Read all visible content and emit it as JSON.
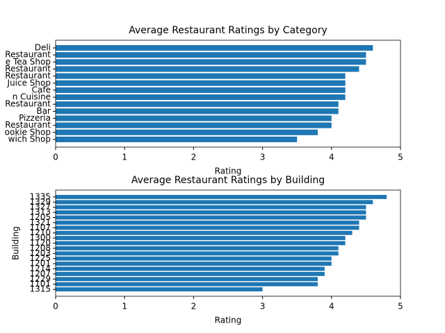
{
  "chart_data": [
    {
      "type": "bar",
      "title": "Average Restaurant Ratings by Category",
      "x_label": "Rating",
      "categories": [
        "Deli",
        "Restaurant",
        "e Tea Shop",
        "Restaurant",
        "Restaurant",
        "Juice Shop",
        "Cafe",
        "n Cuisine",
        "Restaurant",
        "Bar",
        "Pizzeria",
        "Restaurant",
        "ookie Shop",
        "wich Shop"
      ],
      "values": [
        4.6,
        4.5,
        4.5,
        4.4,
        4.2,
        4.2,
        4.2,
        4.2,
        4.1,
        4.1,
        4.0,
        4.0,
        3.8,
        3.5
      ],
      "color": "#1f77b4",
      "xlim": [
        0,
        5
      ],
      "xticks": [
        0,
        1,
        2,
        3,
        4,
        5
      ]
    },
    {
      "type": "bar",
      "title": "Average Restaurant Ratings by Building",
      "x_label": "Rating",
      "y_label": "Building",
      "categories": [
        "1335",
        "1329",
        "1327",
        "1313",
        "1205",
        "1321",
        "1107",
        "1210",
        "1300",
        "1120",
        "1208",
        "1203",
        "1225",
        "1201",
        "1214",
        "1207",
        "1229",
        "1101",
        "1315"
      ],
      "values": [
        4.8,
        4.6,
        4.5,
        4.5,
        4.5,
        4.4,
        4.4,
        4.3,
        4.2,
        4.2,
        4.1,
        4.1,
        4.0,
        4.0,
        3.9,
        3.9,
        3.8,
        3.8,
        3.0
      ],
      "color": "#1f77b4",
      "xlim": [
        0,
        5
      ],
      "xticks": [
        0,
        1,
        2,
        3,
        4,
        5
      ]
    }
  ]
}
